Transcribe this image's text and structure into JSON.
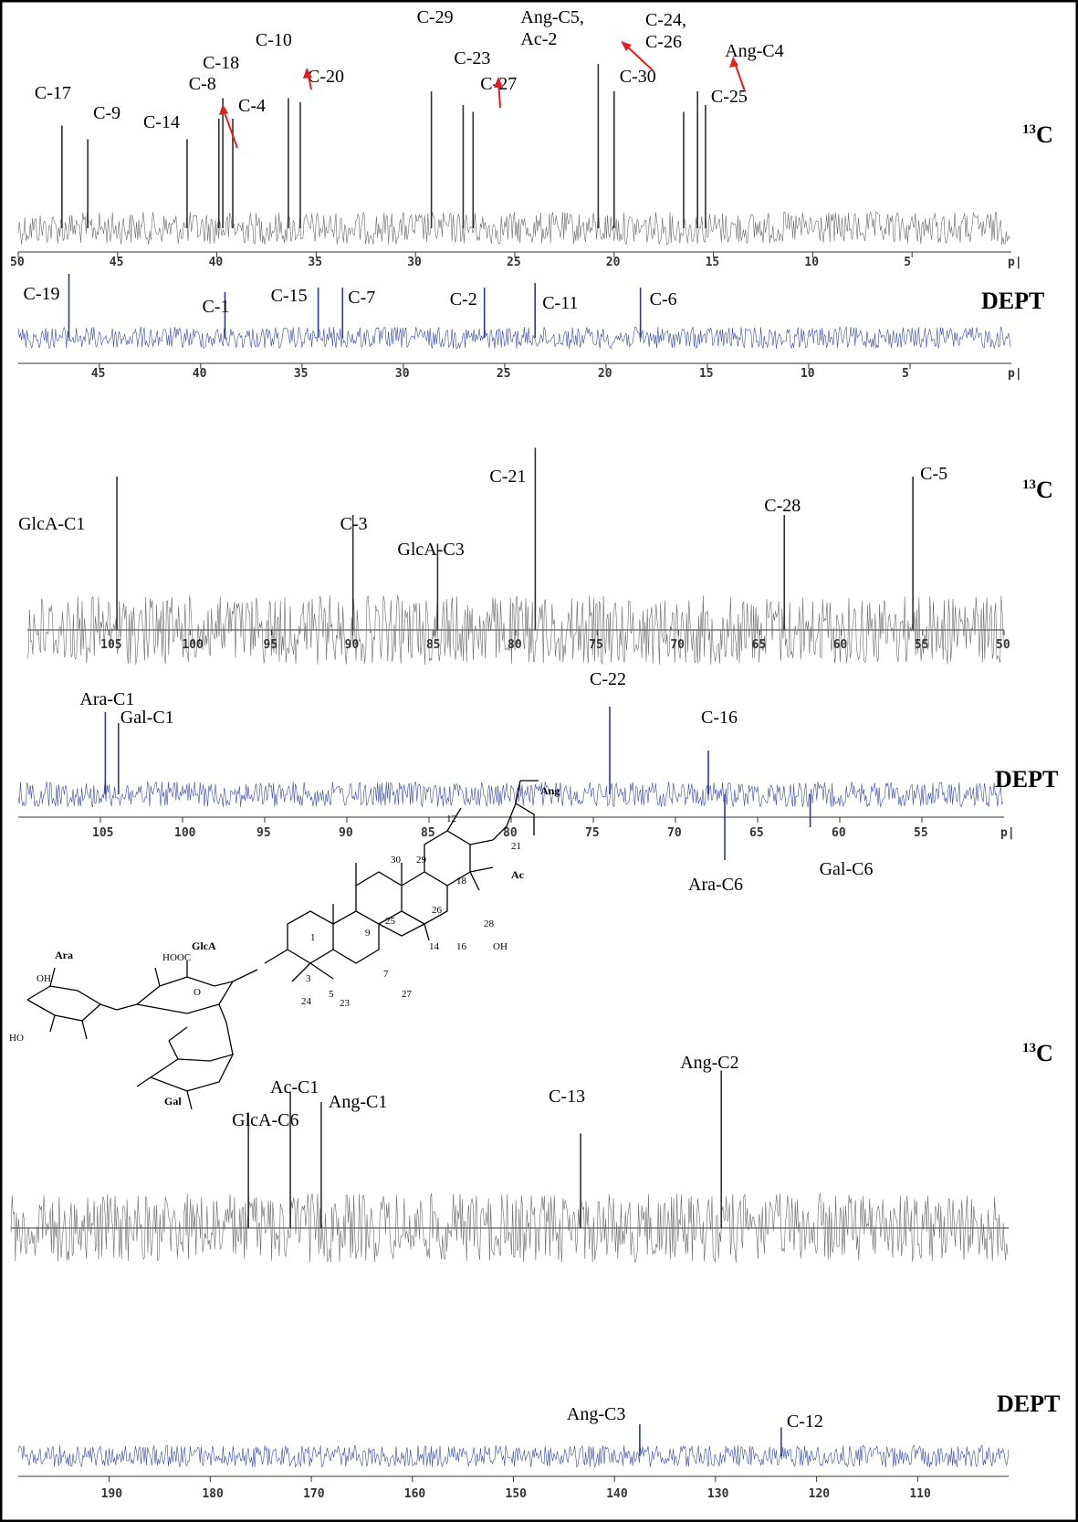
{
  "chart_data": [
    {
      "type": "line",
      "panel": "13C",
      "xrange": [
        50,
        0
      ],
      "ticks": [
        50,
        45,
        40,
        35,
        30,
        25,
        20,
        15,
        10,
        5
      ],
      "unit": "p|",
      "peaks": [
        {
          "label": "C-17",
          "x": 47.8,
          "h": 0.75
        },
        {
          "label": "C-9",
          "x": 46.5,
          "h": 0.65
        },
        {
          "label": "C-14",
          "x": 41.5,
          "h": 0.65
        },
        {
          "label": "C-8",
          "x": 39.9,
          "h": 0.8
        },
        {
          "label": "C-18",
          "x": 39.7,
          "h": 0.95
        },
        {
          "label": "C-4",
          "x": 39.2,
          "h": 0.8
        },
        {
          "label": "C-10",
          "x": 36.4,
          "h": 0.95
        },
        {
          "label": "C-20",
          "x": 35.8,
          "h": 0.92
        },
        {
          "label": "C-29",
          "x": 29.2,
          "h": 1.0
        },
        {
          "label": "C-23",
          "x": 27.6,
          "h": 0.9
        },
        {
          "label": "C-27",
          "x": 27.1,
          "h": 0.85
        },
        {
          "label": "Ang-C5, Ac-2",
          "x": 20.8,
          "h": 1.2
        },
        {
          "label": "C-30",
          "x": 20.0,
          "h": 1.0
        },
        {
          "label": "C-24, C-26",
          "x": 16.5,
          "h": 0.85
        },
        {
          "label": "Ang-C4",
          "x": 15.8,
          "h": 1.0
        },
        {
          "label": "C-25",
          "x": 15.4,
          "h": 0.9
        }
      ],
      "label_text": "13C"
    },
    {
      "type": "line",
      "panel": "DEPT",
      "xrange": [
        49,
        0
      ],
      "ticks": [
        45,
        40,
        35,
        30,
        25,
        20,
        15,
        10,
        5
      ],
      "unit": "p|",
      "peaks": [
        {
          "label": "C-19",
          "x": 46.5,
          "h": 0.7
        },
        {
          "label": "C-1",
          "x": 38.8,
          "h": 0.5
        },
        {
          "label": "C-15",
          "x": 34.2,
          "h": 0.55
        },
        {
          "label": "C-7",
          "x": 33.0,
          "h": 0.55
        },
        {
          "label": "C-2",
          "x": 26.0,
          "h": 0.55
        },
        {
          "label": "C-11",
          "x": 23.5,
          "h": 0.6
        },
        {
          "label": "C-6",
          "x": 18.3,
          "h": 0.55
        }
      ],
      "label_text": "DEPT"
    },
    {
      "type": "line",
      "panel": "13C",
      "xrange": [
        110,
        50
      ],
      "ticks": [
        105,
        100,
        95,
        90,
        85,
        80,
        75,
        70,
        65,
        60,
        55,
        50
      ],
      "unit": "",
      "peaks": [
        {
          "label": "GlcA-C1",
          "x": 104.5,
          "h": 0.8
        },
        {
          "label": "C-3",
          "x": 90.0,
          "h": 0.6
        },
        {
          "label": "GlcA-C3",
          "x": 84.8,
          "h": 0.45
        },
        {
          "label": "C-21",
          "x": 78.8,
          "h": 0.95
        },
        {
          "label": "C-28",
          "x": 63.5,
          "h": 0.6
        },
        {
          "label": "C-5",
          "x": 55.6,
          "h": 0.8
        }
      ],
      "label_text": "13C"
    },
    {
      "type": "line",
      "panel": "DEPT",
      "xrange": [
        110,
        50
      ],
      "ticks": [
        105,
        100,
        95,
        90,
        85,
        80,
        75,
        70,
        65,
        60,
        55
      ],
      "unit": "p|",
      "peaks": [
        {
          "label": "Ara-C1",
          "x": 104.7,
          "h": 0.75
        },
        {
          "label": "Gal-C1",
          "x": 103.9,
          "h": 0.65
        },
        {
          "label": "C-22",
          "x": 74.0,
          "h": 0.8
        },
        {
          "label": "C-16",
          "x": 68.0,
          "h": 0.4
        },
        {
          "label": "Ara-C6",
          "x": 67.0,
          "h": -0.6
        },
        {
          "label": "Gal-C6",
          "x": 61.8,
          "h": -0.3
        }
      ],
      "label_text": "DEPT"
    },
    {
      "type": "line",
      "panel": "13C",
      "xrange": [
        200,
        100
      ],
      "ticks": [],
      "unit": "",
      "peaks": [
        {
          "label": "GlcA-C6",
          "x": 176.2,
          "h": 0.55
        },
        {
          "label": "Ac-C1",
          "x": 172.0,
          "h": 0.65
        },
        {
          "label": "Ang-C1",
          "x": 168.9,
          "h": 0.6
        },
        {
          "label": "C-13",
          "x": 142.9,
          "h": 0.45
        },
        {
          "label": "Ang-C2",
          "x": 128.8,
          "h": 0.75
        }
      ],
      "label_text": "13C"
    },
    {
      "type": "line",
      "panel": "DEPT",
      "xrange": [
        199,
        101
      ],
      "ticks": [
        190,
        180,
        170,
        160,
        150,
        140,
        130,
        120,
        110
      ],
      "unit": "",
      "peaks": [
        {
          "label": "Ang-C3",
          "x": 137.5,
          "h": 0.5
        },
        {
          "label": "C-12",
          "x": 123.5,
          "h": 0.45
        }
      ],
      "label_text": "DEPT"
    }
  ],
  "structure": {
    "labels": [
      "30",
      "29",
      "Ang",
      "12",
      "18",
      "21",
      "Ac",
      "25",
      "26",
      "28",
      "OH",
      "1",
      "9",
      "14",
      "16",
      "3",
      "5",
      "7",
      "27",
      "24",
      "23",
      "HOOC",
      "GlcA",
      "Ara",
      "Gal",
      "OH",
      "O",
      "HO"
    ]
  }
}
